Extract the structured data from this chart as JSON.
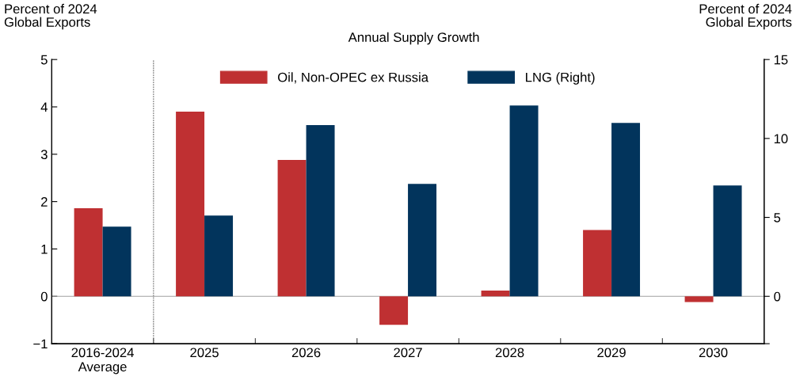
{
  "chart_data": {
    "type": "bar",
    "ylabel": "Percent of 2024\nGlobal Exports",
    "y2label": "Percent of 2024\nGlobal Exports",
    "annotations": [
      "Annual Supply Growth"
    ],
    "categories": [
      "2016-2024\nAverage",
      "2025",
      "2026",
      "2027",
      "2028",
      "2029",
      "2030"
    ],
    "series": [
      {
        "name": "Oil, Non-OPEC ex Russia",
        "color": "#bf3032",
        "values": [
          1.86,
          3.9,
          2.88,
          -0.6,
          0.12,
          1.4,
          -0.12
        ]
      },
      {
        "name": "LNG (Right)",
        "color": "#02345c",
        "axis": "y2",
        "values": [
          4.42,
          5.12,
          10.84,
          7.12,
          12.09,
          10.99,
          7.02
        ]
      }
    ],
    "ylim": [
      -1,
      5
    ],
    "yticks": [
      {
        "value": -1,
        "label": "−1"
      },
      0,
      1,
      2,
      3,
      4,
      5
    ],
    "y2lim": [
      -3,
      15
    ],
    "y2ticks": [
      {
        "value": -3,
        "label": null
      },
      0,
      5,
      10,
      15
    ],
    "ref_lines": [
      {
        "axis": "y",
        "value": 0,
        "color": "#a0a0a0",
        "line_style": "solid"
      }
    ],
    "legend": "top",
    "grid": false
  }
}
